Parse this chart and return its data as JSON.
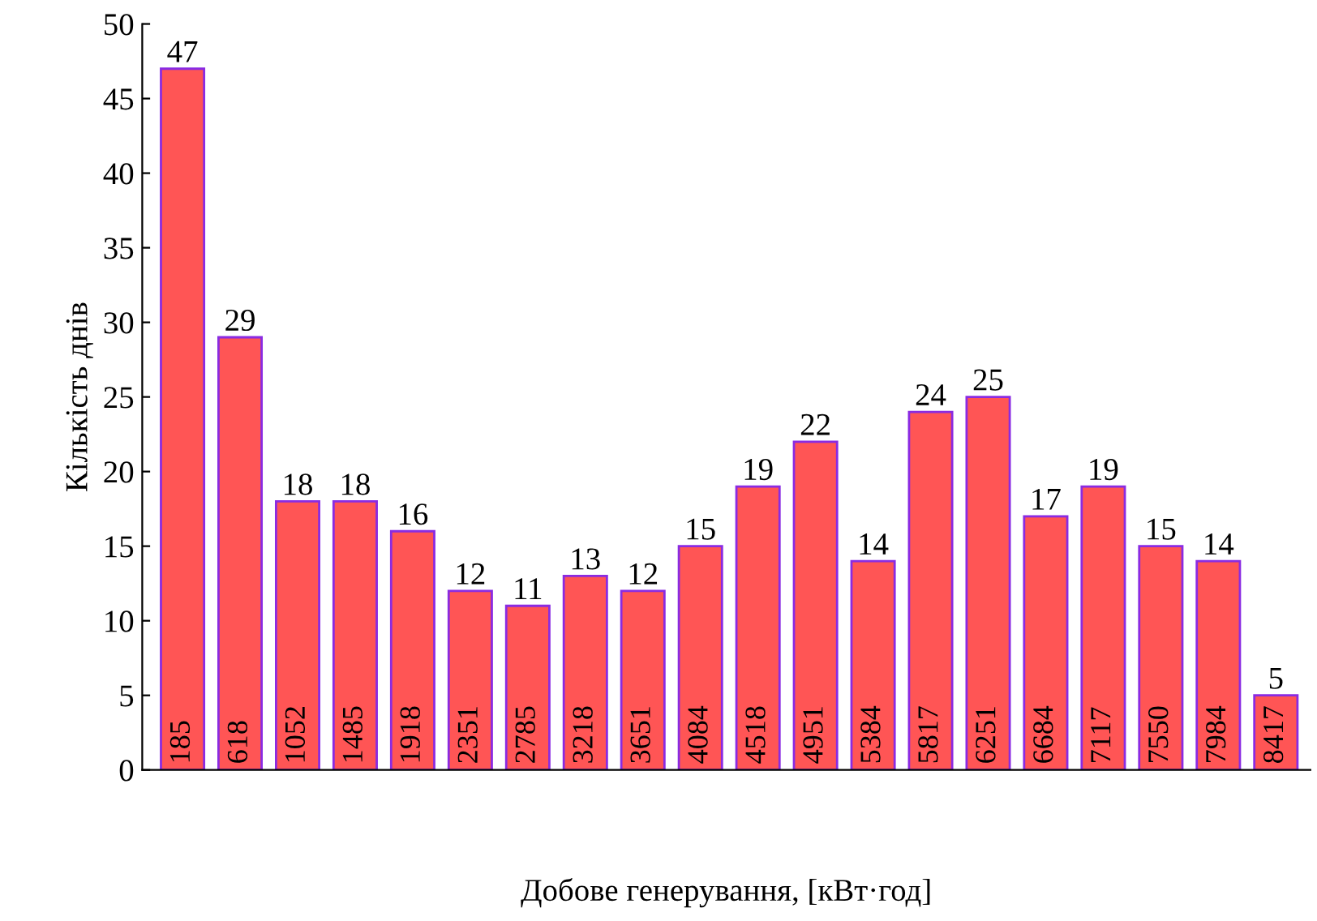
{
  "chart_data": {
    "type": "bar",
    "xlabel": "Добове генерування, [кВт·год]",
    "ylabel": "Кількість днів",
    "categories": [
      "185",
      "618",
      "1052",
      "1485",
      "1918",
      "2351",
      "2785",
      "3218",
      "3651",
      "4084",
      "4518",
      "4951",
      "5384",
      "5817",
      "6251",
      "6684",
      "7117",
      "7550",
      "7984",
      "8417"
    ],
    "values": [
      47,
      29,
      18,
      18,
      16,
      12,
      11,
      13,
      12,
      15,
      19,
      22,
      14,
      24,
      25,
      17,
      19,
      15,
      14,
      5
    ],
    "color": "#ff5555",
    "ylim": [
      0,
      50
    ],
    "yticks": [
      0,
      5,
      10,
      15,
      20,
      25,
      30,
      35,
      40,
      45,
      50
    ],
    "grid": false,
    "data_labels": true
  }
}
